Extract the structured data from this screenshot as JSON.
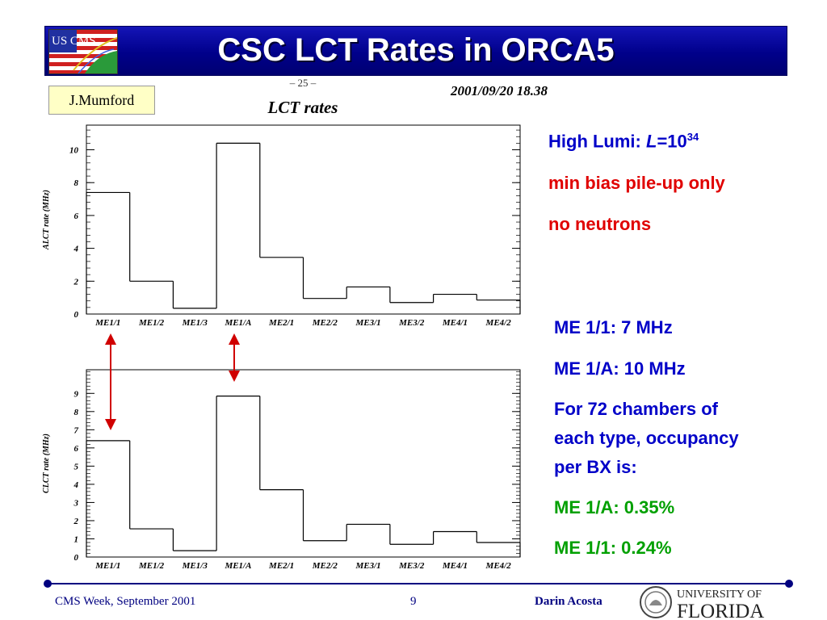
{
  "slide": {
    "title": "CSC LCT Rates in ORCA5",
    "author": "J.Mumford",
    "logo_text": "US CMS"
  },
  "plot_header": {
    "page_mark": "– 25 –",
    "timestamp": "2001/09/20   18.38",
    "plot_title": "LCT rates"
  },
  "notes": {
    "lumi_label": "High Lumi: ",
    "lumi_symbol": "L",
    "lumi_eq": "=10",
    "lumi_exp": "34",
    "pileup": "min bias pile-up only",
    "neutrons": "no neutrons",
    "me11_rate": "ME 1/1:   7 MHz",
    "me1a_rate": "ME 1/A: 10 MHz",
    "occupancy_line1": "For 72 chambers of",
    "occupancy_line2": "each type, occupancy",
    "occupancy_line3": "per BX is:",
    "me1a_occ": "ME 1/A:   0.35%",
    "me11_occ": "ME 1/1:   0.24%"
  },
  "footer": {
    "event": "CMS Week, September 2001",
    "page": "9",
    "presenter": "Darin Acosta",
    "university_line1": "UNIVERSITY OF",
    "university_line2": "FLORIDA"
  },
  "colors": {
    "title_bar": "#00008a",
    "blue_text": "#0000c8",
    "red_text": "#e00000",
    "green_text": "#00a000",
    "arrow": "#d00000",
    "footer": "#000080"
  },
  "chart_data": [
    {
      "type": "bar",
      "style": "step-histogram",
      "title": "LCT rates",
      "ylabel": "ALCT rate (MHz)",
      "xlabel": "",
      "categories": [
        "ME1/1",
        "ME1/2",
        "ME1/3",
        "ME1/A",
        "ME2/1",
        "ME2/2",
        "ME3/1",
        "ME3/2",
        "ME4/1",
        "ME4/2"
      ],
      "values": [
        7.4,
        2.0,
        0.35,
        10.4,
        3.45,
        0.95,
        1.65,
        0.7,
        1.2,
        0.85
      ],
      "ylim": [
        0,
        11.5
      ],
      "yticks": [
        0,
        2,
        4,
        6,
        8,
        10
      ],
      "ytick_labels": [
        "0",
        "2",
        "4",
        "6",
        "8",
        "10"
      ],
      "grid": false
    },
    {
      "type": "bar",
      "style": "step-histogram",
      "ylabel": "CLCT rate (MHz)",
      "xlabel": "",
      "categories": [
        "ME1/1",
        "ME1/2",
        "ME1/3",
        "ME1/A",
        "ME2/1",
        "ME2/2",
        "ME3/1",
        "ME3/2",
        "ME4/1",
        "ME4/2"
      ],
      "values": [
        6.4,
        1.55,
        0.35,
        8.85,
        3.7,
        0.9,
        1.8,
        0.7,
        1.4,
        0.8
      ],
      "ylim": [
        0,
        10.3
      ],
      "yticks": [
        0,
        1,
        2,
        3,
        4,
        5,
        6,
        7,
        8,
        9
      ],
      "ytick_labels": [
        "0",
        "1",
        "2",
        "3",
        "4",
        "5",
        "6",
        "7",
        "8",
        "9"
      ],
      "grid": false
    }
  ]
}
